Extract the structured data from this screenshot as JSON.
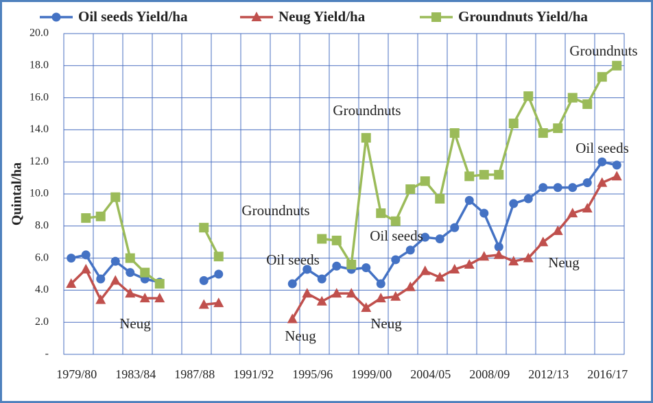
{
  "chart_data": {
    "type": "line",
    "ylabel": "Quintal/ha",
    "categories": [
      "1979/80",
      null,
      null,
      null,
      "1983/84",
      null,
      null,
      null,
      "1987/88",
      null,
      null,
      null,
      "1991/92",
      null,
      null,
      null,
      "1995/96",
      null,
      null,
      null,
      "1999/00",
      null,
      null,
      null,
      "2004/05",
      null,
      null,
      null,
      "2008/09",
      null,
      null,
      null,
      "2012/13",
      null,
      null,
      null,
      "2016/17",
      null
    ],
    "series": [
      {
        "name": "Oil seeds Yield/ha",
        "color": "#4472c4",
        "marker": "circle",
        "values": [
          6.0,
          6.2,
          4.7,
          5.8,
          5.1,
          4.7,
          4.5,
          null,
          null,
          4.6,
          5.0,
          null,
          null,
          null,
          null,
          4.4,
          5.3,
          4.7,
          5.5,
          5.3,
          5.4,
          4.4,
          5.9,
          6.5,
          7.3,
          7.2,
          7.9,
          9.6,
          8.8,
          6.7,
          9.4,
          9.7,
          10.4,
          10.4,
          10.4,
          10.7,
          12.0,
          11.8
        ]
      },
      {
        "name": "Neug Yield/ha",
        "color": "#c0504d",
        "marker": "triangle",
        "values": [
          4.4,
          5.3,
          3.4,
          4.6,
          3.8,
          3.5,
          3.5,
          null,
          null,
          3.1,
          3.2,
          null,
          null,
          null,
          null,
          2.2,
          3.8,
          3.3,
          3.8,
          3.8,
          2.9,
          3.5,
          3.6,
          4.2,
          5.2,
          4.8,
          5.3,
          5.6,
          6.1,
          6.2,
          5.8,
          6.0,
          7.0,
          7.7,
          8.8,
          9.1,
          10.7,
          11.1
        ]
      },
      {
        "name": "Groundnuts Yield/ha",
        "color": "#9bbb59",
        "marker": "square",
        "values": [
          null,
          8.5,
          8.6,
          9.8,
          6.0,
          5.1,
          4.4,
          null,
          null,
          7.9,
          6.1,
          null,
          null,
          null,
          null,
          null,
          null,
          7.2,
          7.1,
          5.6,
          13.5,
          8.8,
          8.3,
          10.3,
          10.8,
          9.7,
          13.8,
          11.1,
          11.2,
          11.2,
          14.4,
          16.1,
          13.8,
          14.1,
          16.0,
          15.6,
          17.3,
          18.0
        ]
      }
    ],
    "ylim": [
      0,
      20
    ],
    "yticks": [
      {
        "value": 0,
        "label": "-"
      },
      {
        "value": 2,
        "label": "2.0"
      },
      {
        "value": 4,
        "label": "4.0"
      },
      {
        "value": 6,
        "label": "6.0"
      },
      {
        "value": 8,
        "label": "8.0"
      },
      {
        "value": 10,
        "label": "10.0"
      },
      {
        "value": 12,
        "label": "12.0"
      },
      {
        "value": 14,
        "label": "14.0"
      },
      {
        "value": 16,
        "label": "16.0"
      },
      {
        "value": 18,
        "label": "18.0"
      },
      {
        "value": 20,
        "label": "20.0"
      }
    ],
    "grid": true,
    "legend": "top",
    "annotations": [
      "Neug",
      "Groundnuts",
      "Oil seeds",
      "Neug",
      "Groundnuts",
      "Oil seeds",
      "Neug",
      "Oil seeds",
      "Neug",
      "Groundnuts"
    ]
  }
}
